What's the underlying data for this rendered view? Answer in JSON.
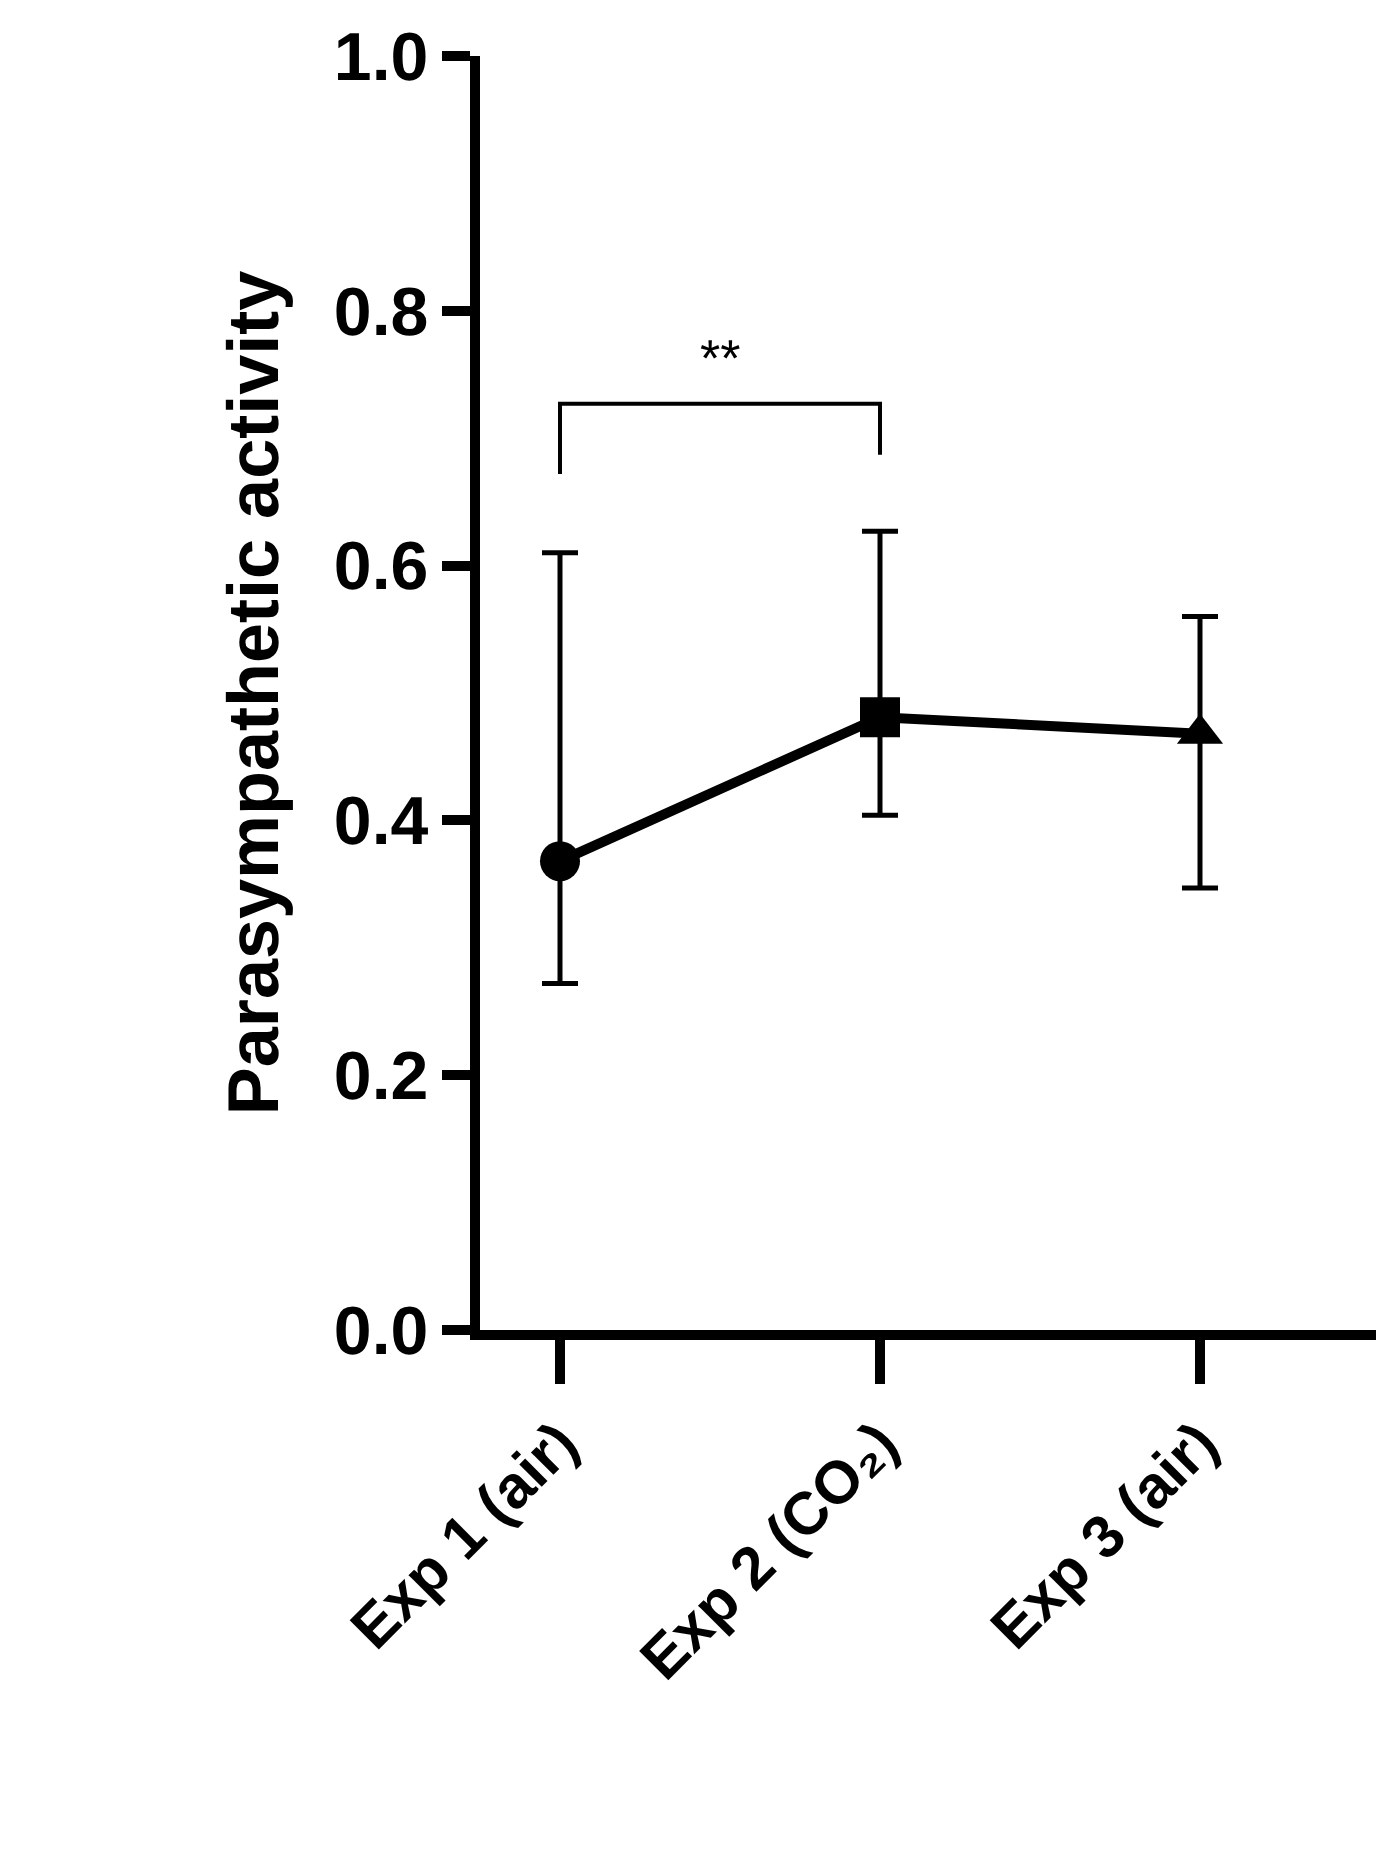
{
  "chart_data": {
    "type": "line",
    "ylabel": "Parasympathetic activity",
    "categories": [
      "Exp 1 (air)",
      "Exp 2 (CO₂)",
      "Exp 3 (air)"
    ],
    "series": [
      {
        "color": "#000000",
        "values": [
          0.368,
          0.481,
          0.468
        ],
        "errors": [
          [
            0.272,
            0.61
          ],
          [
            0.404,
            0.627
          ],
          [
            0.347,
            0.56
          ]
        ],
        "marker": [
          "circle",
          "square",
          "triangle"
        ]
      }
    ],
    "ylim": [
      0,
      1.0
    ],
    "yticks": [
      {
        "value": 0,
        "label": "0.0"
      },
      0.2,
      0.4,
      0.6,
      0.8,
      {
        "value": 1.0,
        "label": "1.0"
      }
    ],
    "annotations": [
      "**"
    ],
    "line_style": "solid"
  }
}
